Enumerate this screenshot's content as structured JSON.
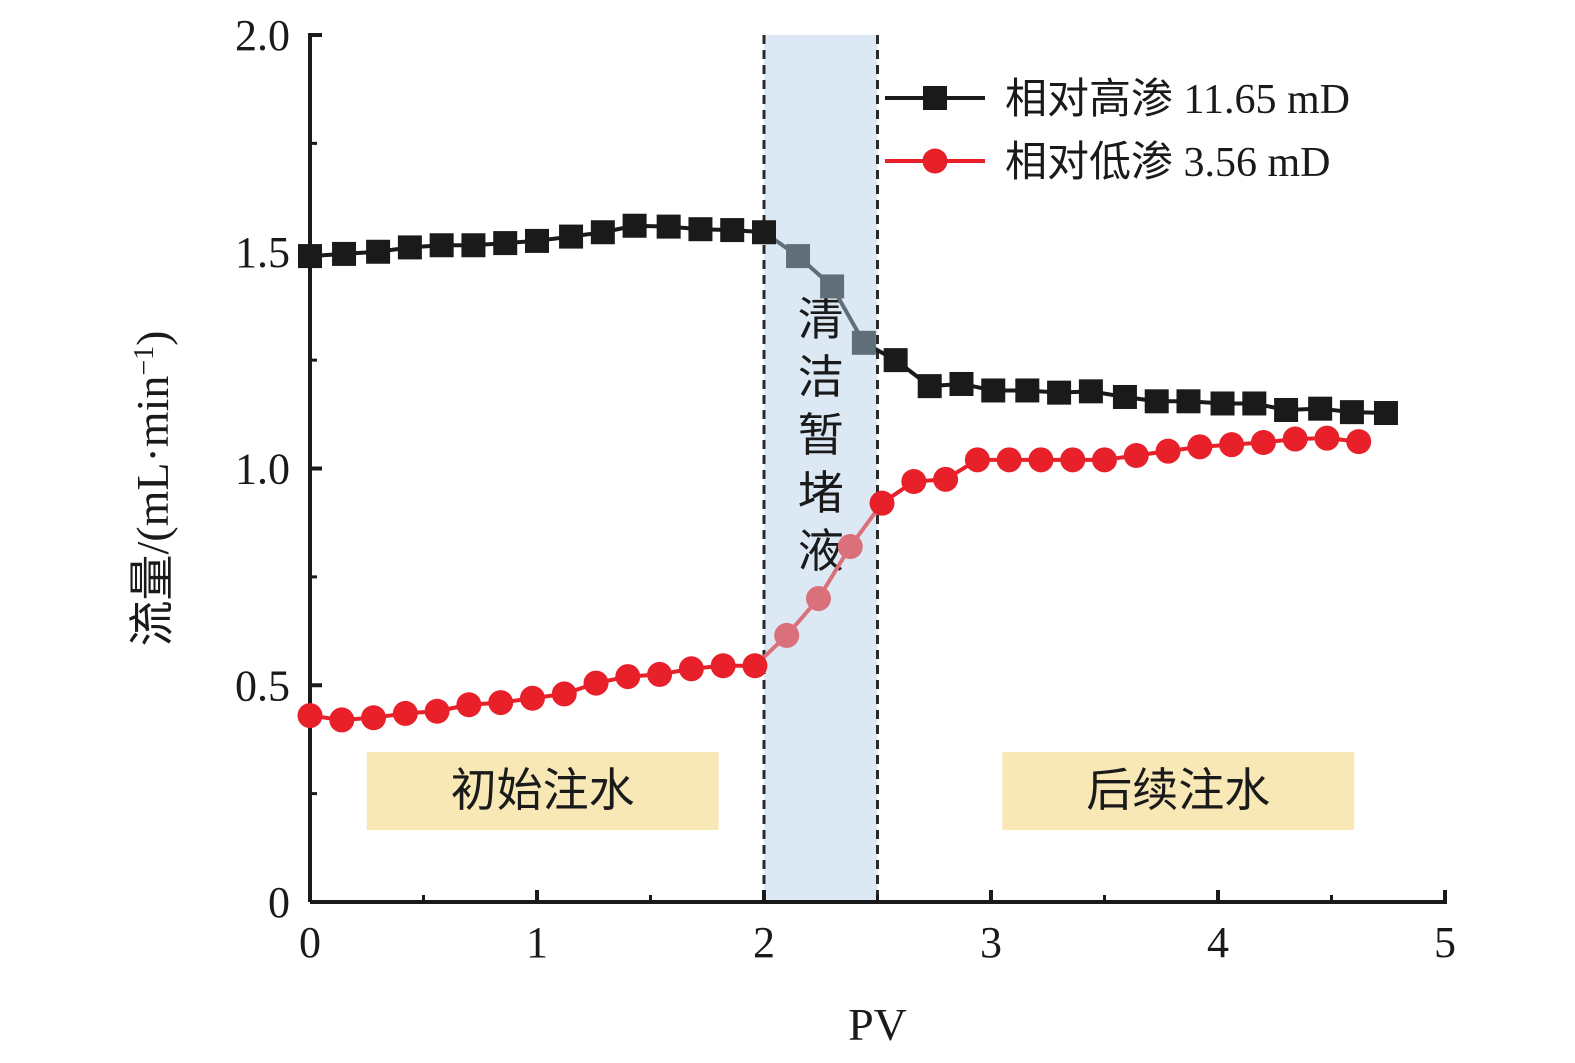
{
  "chart_data": {
    "type": "line",
    "xlabel": "PV",
    "ylabel": "流量/(mL·min",
    "ylabel_sup": "−1",
    "ylabel_close": ")",
    "xlim": [
      0,
      5
    ],
    "ylim": [
      0,
      2.0
    ],
    "x_ticks": [
      0,
      1,
      2,
      3,
      4,
      5
    ],
    "x_tick_labels": [
      "0",
      "1",
      "2",
      "3",
      "4",
      "5"
    ],
    "y_ticks": [
      0,
      0.5,
      1.0,
      1.5,
      2.0
    ],
    "y_tick_labels": [
      "0",
      "0.5",
      "1.0",
      "1.5",
      "2.0"
    ],
    "grid": false,
    "legend_position": "top-right",
    "shaded_band": {
      "x_range": [
        2.0,
        2.5
      ],
      "label": "清洁暂堵液",
      "color": "#dce9f5"
    },
    "phase_labels": [
      {
        "label": "初始注水",
        "x_range": [
          0.25,
          1.8
        ],
        "color": "#f7e8b5"
      },
      {
        "label": "后续注水",
        "x_range": [
          3.05,
          4.6
        ],
        "color": "#f7e8b5"
      }
    ],
    "series": [
      {
        "name": "相对高渗 11.65 mD",
        "color": "#1a1a1a",
        "band_color": "#5f6f78",
        "marker": "square",
        "x": [
          0,
          0.15,
          0.3,
          0.44,
          0.58,
          0.72,
          0.86,
          1.0,
          1.15,
          1.29,
          1.43,
          1.58,
          1.72,
          1.86,
          2.0,
          2.15,
          2.3,
          2.44,
          2.58,
          2.73,
          2.87,
          3.01,
          3.16,
          3.3,
          3.44,
          3.59,
          3.73,
          3.87,
          4.02,
          4.16,
          4.3,
          4.45,
          4.59,
          4.74
        ],
        "values": [
          1.49,
          1.495,
          1.5,
          1.51,
          1.515,
          1.515,
          1.52,
          1.525,
          1.535,
          1.545,
          1.56,
          1.558,
          1.552,
          1.55,
          1.545,
          1.49,
          1.42,
          1.29,
          1.25,
          1.19,
          1.195,
          1.18,
          1.18,
          1.175,
          1.178,
          1.165,
          1.155,
          1.155,
          1.15,
          1.15,
          1.135,
          1.138,
          1.13,
          1.128
        ]
      },
      {
        "name": "相对低渗 3.56 mD",
        "color": "#e8202a",
        "band_color": "#d9707a",
        "marker": "circle",
        "x": [
          0,
          0.14,
          0.28,
          0.42,
          0.56,
          0.7,
          0.84,
          0.98,
          1.12,
          1.26,
          1.4,
          1.54,
          1.68,
          1.82,
          1.96,
          2.1,
          2.24,
          2.38,
          2.52,
          2.66,
          2.8,
          2.94,
          3.08,
          3.22,
          3.36,
          3.5,
          3.64,
          3.78,
          3.92,
          4.06,
          4.2,
          4.34,
          4.48,
          4.62
        ],
        "values": [
          0.43,
          0.42,
          0.425,
          0.435,
          0.44,
          0.455,
          0.46,
          0.47,
          0.48,
          0.505,
          0.52,
          0.525,
          0.538,
          0.545,
          0.545,
          0.615,
          0.7,
          0.82,
          0.92,
          0.97,
          0.975,
          1.02,
          1.02,
          1.02,
          1.02,
          1.02,
          1.03,
          1.04,
          1.05,
          1.055,
          1.06,
          1.068,
          1.07,
          1.062
        ]
      }
    ]
  }
}
